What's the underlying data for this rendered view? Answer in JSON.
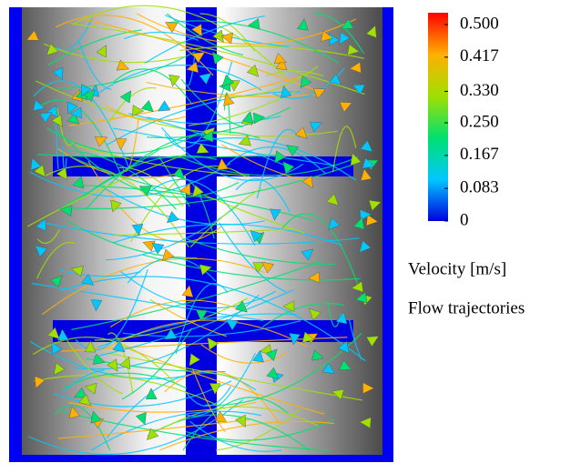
{
  "colorbar": {
    "ticks": [
      {
        "value": 0.5,
        "label": "0.500"
      },
      {
        "value": 0.417,
        "label": "0.417"
      },
      {
        "value": 0.33,
        "label": "0.330"
      },
      {
        "value": 0.25,
        "label": "0.250"
      },
      {
        "value": 0.167,
        "label": "0.167"
      },
      {
        "value": 0.083,
        "label": "0.083"
      },
      0
    ],
    "range": [
      0,
      0.5
    ],
    "colors": [
      "#0000e0",
      "#00c8ff",
      "#00e070",
      "#a0e000",
      "#ffb000",
      "#ff0000"
    ],
    "title": "Velocity [m/s]"
  },
  "caption": "Flow trajectories"
}
